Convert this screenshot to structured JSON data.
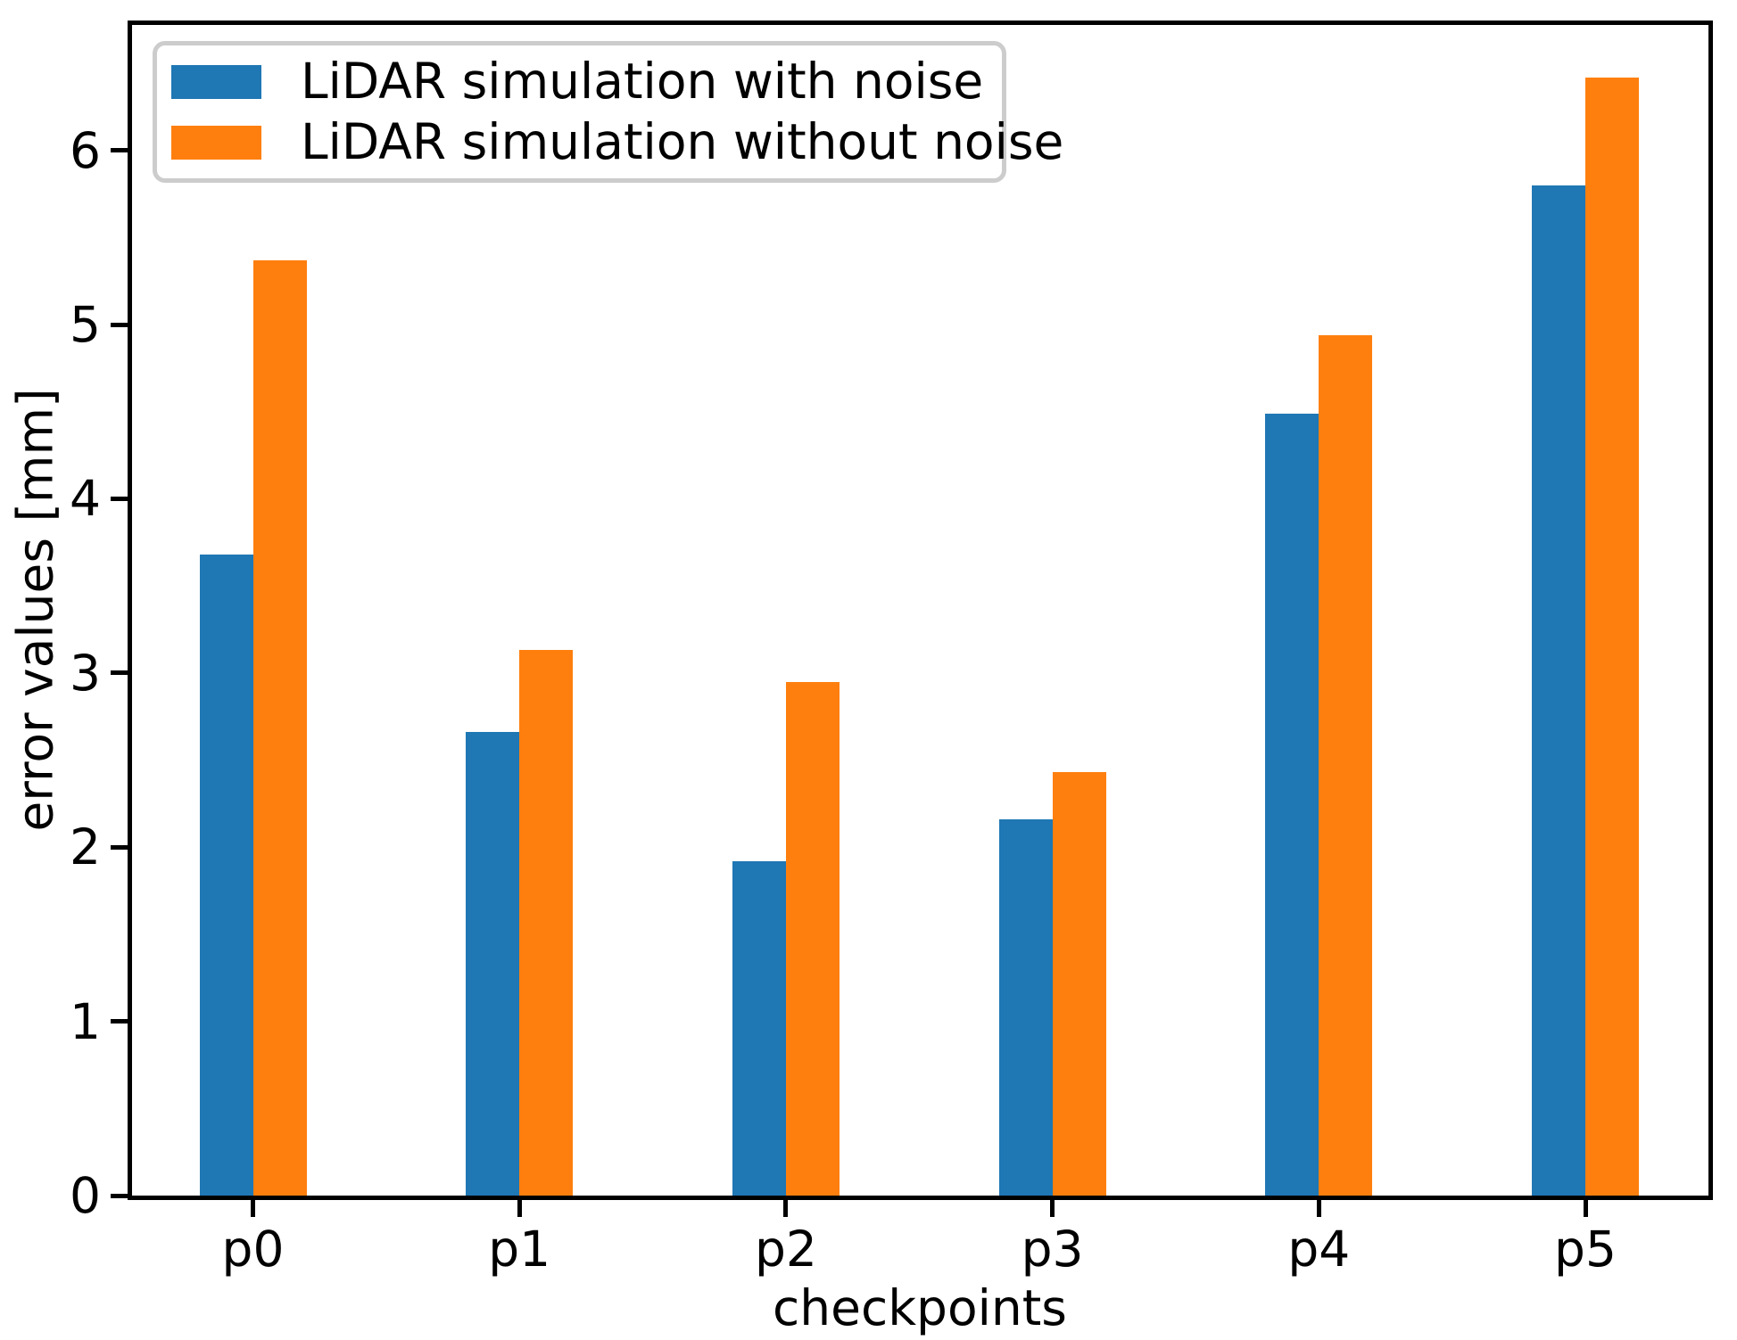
{
  "chart_data": {
    "type": "bar",
    "title": "",
    "xlabel": "checkpoints",
    "ylabel": "error values [mm]",
    "categories": [
      "p0",
      "p1",
      "p2",
      "p3",
      "p4",
      "p5"
    ],
    "series": [
      {
        "name": "LiDAR simulation with noise",
        "color": "#1f77b4",
        "values": [
          3.68,
          2.66,
          1.92,
          2.16,
          4.49,
          5.8
        ]
      },
      {
        "name": "LiDAR simulation without noise",
        "color": "#ff7f0e",
        "values": [
          5.37,
          3.13,
          2.95,
          2.43,
          4.94,
          6.42
        ]
      }
    ],
    "yticks": [
      "0",
      "1",
      "2",
      "3",
      "4",
      "5",
      "6"
    ],
    "ylim": [
      0,
      6.72
    ],
    "grid": false,
    "legend_position": "upper left",
    "spine_color": "#000000",
    "background_color": "#ffffff"
  }
}
